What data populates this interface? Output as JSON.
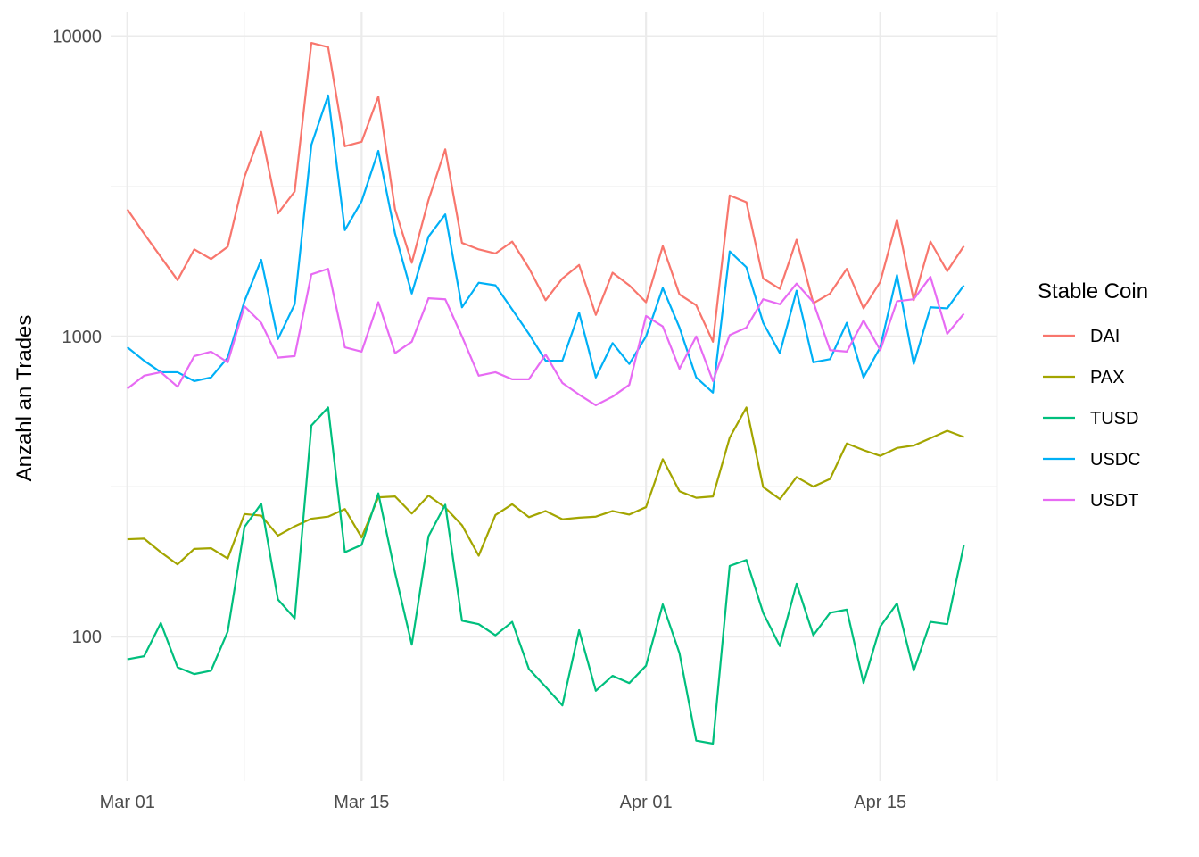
{
  "chart_data": {
    "type": "line",
    "title": "",
    "xlabel": "",
    "ylabel": "Anzahl an Trades",
    "y_scale": "log10",
    "ylim": [
      33,
      12000
    ],
    "xlim": [
      "2019-02-28",
      "2019-04-22"
    ],
    "x_ticks": [
      "2019-03-01",
      "2019-03-15",
      "2019-04-01",
      "2019-04-15"
    ],
    "x_tick_labels": [
      "Mar 01",
      "Mar 15",
      "Apr 01",
      "Apr 15"
    ],
    "y_ticks": [
      100,
      1000,
      10000
    ],
    "y_tick_labels": [
      "100",
      "1000",
      "10000"
    ],
    "grid": true,
    "legend": {
      "title": "Stable Coin",
      "position": "right"
    },
    "x": [
      "2019-03-01",
      "2019-03-02",
      "2019-03-03",
      "2019-03-04",
      "2019-03-05",
      "2019-03-06",
      "2019-03-07",
      "2019-03-08",
      "2019-03-09",
      "2019-03-10",
      "2019-03-11",
      "2019-03-12",
      "2019-03-13",
      "2019-03-14",
      "2019-03-15",
      "2019-03-16",
      "2019-03-17",
      "2019-03-18",
      "2019-03-19",
      "2019-03-20",
      "2019-03-21",
      "2019-03-22",
      "2019-03-23",
      "2019-03-24",
      "2019-03-25",
      "2019-03-26",
      "2019-03-27",
      "2019-03-28",
      "2019-03-29",
      "2019-03-30",
      "2019-03-31",
      "2019-04-01",
      "2019-04-02",
      "2019-04-03",
      "2019-04-04",
      "2019-04-05",
      "2019-04-06",
      "2019-04-07",
      "2019-04-08",
      "2019-04-09",
      "2019-04-10",
      "2019-04-11",
      "2019-04-12",
      "2019-04-13",
      "2019-04-14",
      "2019-04-15",
      "2019-04-16",
      "2019-04-17",
      "2019-04-18",
      "2019-04-19",
      "2019-04-20"
    ],
    "series": [
      {
        "name": "DAI",
        "color": "#F8766D",
        "values": [
          2650,
          2200,
          1840,
          1540,
          1950,
          1810,
          1990,
          3400,
          4800,
          2570,
          3040,
          9500,
          9200,
          4300,
          4450,
          6300,
          2650,
          1760,
          2850,
          4200,
          2050,
          1950,
          1890,
          2070,
          1690,
          1320,
          1560,
          1730,
          1180,
          1630,
          1480,
          1300,
          2000,
          1380,
          1270,
          960,
          2950,
          2800,
          1560,
          1440,
          2100,
          1290,
          1390,
          1680,
          1240,
          1520,
          2450,
          1320,
          2070,
          1650,
          2000
        ]
      },
      {
        "name": "PAX",
        "color": "#A3A500",
        "values": [
          211,
          212,
          191,
          174,
          196,
          197,
          182,
          256,
          253,
          217,
          233,
          247,
          251,
          266,
          214,
          291,
          293,
          257,
          295,
          269,
          235,
          186,
          254,
          276,
          250,
          262,
          246,
          249,
          251,
          262,
          255,
          270,
          390,
          305,
          290,
          293,
          460,
          580,
          315,
          287,
          340,
          316,
          335,
          440,
          418,
          400,
          425,
          433,
          458,
          485,
          462
        ]
      },
      {
        "name": "TUSD",
        "color": "#00BF7D",
        "values": [
          84,
          86,
          111,
          79,
          75,
          77,
          104,
          232,
          277,
          133,
          115,
          505,
          580,
          191,
          202,
          300,
          163,
          94,
          216,
          275,
          113,
          110,
          101,
          112,
          78,
          68,
          59,
          105,
          66,
          74,
          70,
          80,
          128,
          88,
          45,
          44,
          172,
          180,
          120,
          93,
          150,
          101,
          120,
          123,
          70,
          108,
          129,
          77,
          112,
          110,
          202
        ]
      },
      {
        "name": "USDC",
        "color": "#00B0F6",
        "values": [
          920,
          830,
          760,
          760,
          710,
          730,
          850,
          1310,
          1800,
          980,
          1280,
          4350,
          6350,
          2260,
          2820,
          4150,
          2200,
          1390,
          2150,
          2550,
          1250,
          1510,
          1480,
          1230,
          1020,
          830,
          830,
          1200,
          730,
          950,
          810,
          1000,
          1450,
          1070,
          730,
          650,
          1920,
          1700,
          1110,
          880,
          1420,
          820,
          840,
          1110,
          730,
          920,
          1600,
          810,
          1250,
          1240,
          1480
        ]
      },
      {
        "name": "USDT",
        "color": "#E76BF3",
        "values": [
          670,
          740,
          760,
          680,
          860,
          890,
          820,
          1260,
          1110,
          850,
          860,
          1610,
          1680,
          920,
          890,
          1300,
          880,
          960,
          1340,
          1330,
          1000,
          740,
          760,
          720,
          720,
          870,
          700,
          640,
          590,
          630,
          690,
          1170,
          1080,
          780,
          1000,
          710,
          1010,
          1070,
          1330,
          1280,
          1500,
          1300,
          900,
          890,
          1130,
          900,
          1310,
          1330,
          1580,
          1020,
          1190
        ]
      }
    ]
  }
}
